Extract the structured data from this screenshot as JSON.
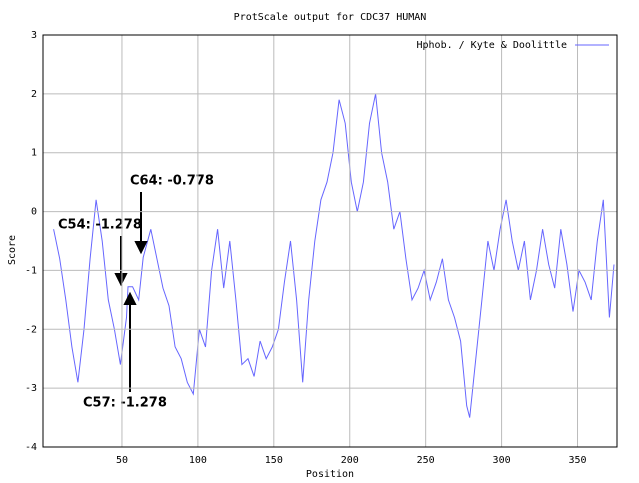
{
  "chart_data": {
    "type": "line",
    "title": "ProtScale output for CDC37 HUMAN",
    "x_label": "Position",
    "y_label": "Score",
    "x": [
      5,
      9,
      13,
      17,
      21,
      25,
      29,
      33,
      37,
      41,
      45,
      49,
      53,
      54,
      57,
      61,
      64,
      69,
      73,
      77,
      81,
      85,
      89,
      93,
      97,
      101,
      105,
      109,
      113,
      117,
      121,
      125,
      129,
      133,
      137,
      141,
      145,
      149,
      153,
      157,
      161,
      165,
      169,
      173,
      177,
      181,
      185,
      189,
      193,
      197,
      201,
      205,
      209,
      213,
      217,
      221,
      225,
      229,
      233,
      237,
      241,
      245,
      249,
      253,
      257,
      261,
      265,
      269,
      273,
      277,
      279,
      283,
      287,
      291,
      295,
      299,
      303,
      307,
      311,
      315,
      319,
      323,
      327,
      331,
      335,
      339,
      343,
      347,
      351,
      355,
      359,
      363,
      367,
      371,
      374
    ],
    "series": [
      {
        "name": "Hphob. / Kyte & Doolittle",
        "color": "#6666ff",
        "values": [
          -0.3,
          -0.8,
          -1.5,
          -2.3,
          -2.9,
          -2.0,
          -0.8,
          0.2,
          -0.5,
          -1.5,
          -2.0,
          -2.6,
          -1.8,
          -1.278,
          -1.278,
          -1.5,
          -0.778,
          -0.3,
          -0.8,
          -1.3,
          -1.6,
          -2.3,
          -2.5,
          -2.9,
          -3.1,
          -2.0,
          -2.3,
          -1.0,
          -0.3,
          -1.3,
          -0.5,
          -1.5,
          -2.6,
          -2.5,
          -2.8,
          -2.2,
          -2.5,
          -2.3,
          -2.0,
          -1.2,
          -0.5,
          -1.5,
          -2.9,
          -1.5,
          -0.5,
          0.2,
          0.5,
          1.0,
          1.9,
          1.5,
          0.5,
          0.0,
          0.5,
          1.5,
          2.0,
          1.0,
          0.5,
          -0.3,
          0.0,
          -0.8,
          -1.5,
          -1.3,
          -1.0,
          -1.5,
          -1.2,
          -0.8,
          -1.5,
          -1.8,
          -2.2,
          -3.3,
          -3.5,
          -2.5,
          -1.5,
          -0.5,
          -1.0,
          -0.3,
          0.2,
          -0.5,
          -1.0,
          -0.5,
          -1.5,
          -1.0,
          -0.3,
          -0.9,
          -1.3,
          -0.3,
          -0.9,
          -1.7,
          -1.0,
          -1.2,
          -1.5,
          -0.5,
          0.2,
          -1.8,
          -0.9
        ]
      }
    ],
    "xlim": [
      -2,
      376
    ],
    "xticks": [
      50,
      100,
      150,
      200,
      250,
      300,
      350
    ],
    "ylim": [
      -4,
      3
    ],
    "yticks": [
      -4,
      -3,
      -2,
      -1,
      0,
      1,
      2,
      3
    ],
    "grid": true,
    "legend": "upper right",
    "annotations": [
      "C64: -0.778",
      "C54: -1.278",
      "C57: -1.278"
    ]
  }
}
